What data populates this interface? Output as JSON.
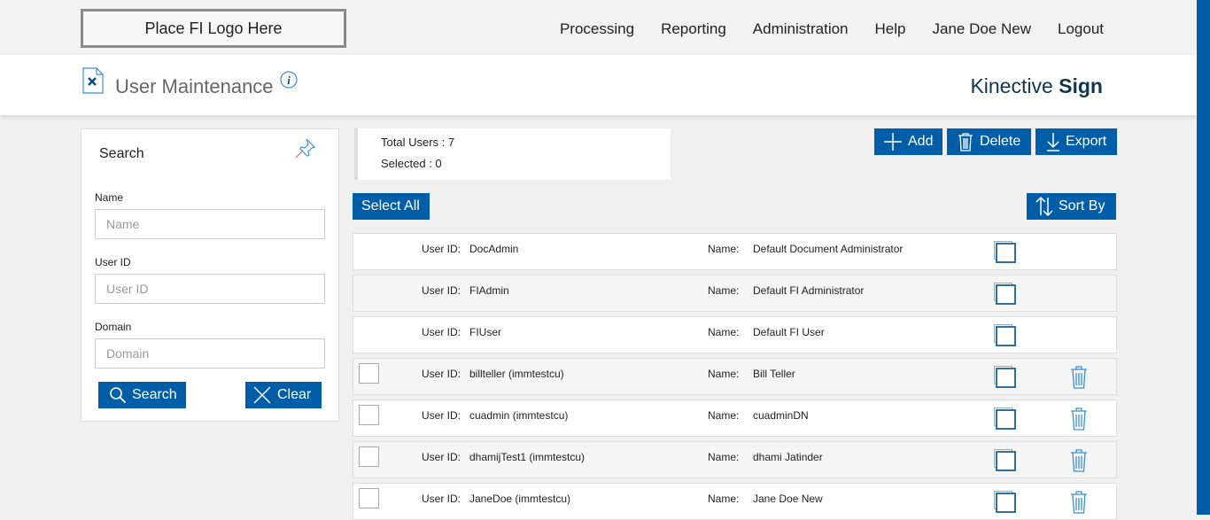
{
  "header": {
    "logo": "Place FI Logo Here",
    "nav": [
      "Processing",
      "Reporting",
      "Administration",
      "Help",
      "Jane Doe New",
      "Logout"
    ]
  },
  "title": {
    "page": "User Maintenance",
    "brand_light": "Kinective",
    "brand_bold": "Sign"
  },
  "search": {
    "title": "Search",
    "fields": [
      {
        "label": "Name",
        "placeholder": "Name"
      },
      {
        "label": "User ID",
        "placeholder": "User ID"
      },
      {
        "label": "Domain",
        "placeholder": "Domain"
      }
    ],
    "search_label": "Search",
    "clear_label": "Clear"
  },
  "summary": {
    "total": "Total Users : 7",
    "selected": "Selected : 0"
  },
  "toolbar": {
    "add": "Add",
    "delete": "Delete",
    "export": "Export",
    "select_all": "Select All",
    "sort_by": "Sort By"
  },
  "accent": "#005ea8",
  "users": [
    {
      "id_label": "User ID:",
      "id": "DocAdmin",
      "name_label": "Name:",
      "name": "Default Document Administrator",
      "selectable": false
    },
    {
      "id_label": "User ID:",
      "id": "FIAdmin",
      "name_label": "Name:",
      "name": "Default FI Administrator",
      "selectable": false
    },
    {
      "id_label": "User ID:",
      "id": "FIUser",
      "name_label": "Name:",
      "name": "Default FI User",
      "selectable": false
    },
    {
      "id_label": "User ID:",
      "id": "billteller (immtestcu)",
      "name_label": "Name:",
      "name": "Bill Teller",
      "selectable": true
    },
    {
      "id_label": "User ID:",
      "id": "cuadmin (immtestcu)",
      "name_label": "Name:",
      "name": "cuadminDN",
      "selectable": true
    },
    {
      "id_label": "User ID:",
      "id": "dhamijTest1 (immtestcu)",
      "name_label": "Name:",
      "name": "dhami Jatinder",
      "selectable": true
    },
    {
      "id_label": "User ID:",
      "id": "JaneDoe (immtestcu)",
      "name_label": "Name:",
      "name": "Jane Doe New",
      "selectable": true
    }
  ]
}
